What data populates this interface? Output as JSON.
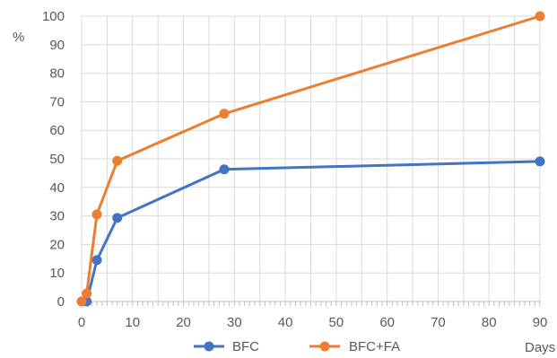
{
  "chart_data": {
    "type": "line",
    "xlabel": "Days",
    "ylabel": "%",
    "xlim": [
      0,
      90
    ],
    "ylim": [
      0,
      100
    ],
    "x_ticks": [
      "0",
      "10",
      "20",
      "30",
      "40",
      "50",
      "60",
      "70",
      "80",
      "90"
    ],
    "y_ticks": [
      "0",
      "10",
      "20",
      "30",
      "40",
      "50",
      "60",
      "70",
      "80",
      "90",
      "100"
    ],
    "grid": true,
    "legend_position": "bottom",
    "series": [
      {
        "name": "BFC",
        "color": "#4472C4",
        "x": [
          0,
          1,
          3,
          7,
          28,
          90
        ],
        "y": [
          0,
          0,
          14.5,
          29.3,
          46.3,
          49.1
        ]
      },
      {
        "name": "BFC+FA",
        "color": "#ED7D31",
        "x": [
          0,
          1,
          3,
          7,
          28,
          90
        ],
        "y": [
          0,
          2.8,
          30.5,
          49.3,
          65.8,
          100
        ]
      }
    ]
  }
}
